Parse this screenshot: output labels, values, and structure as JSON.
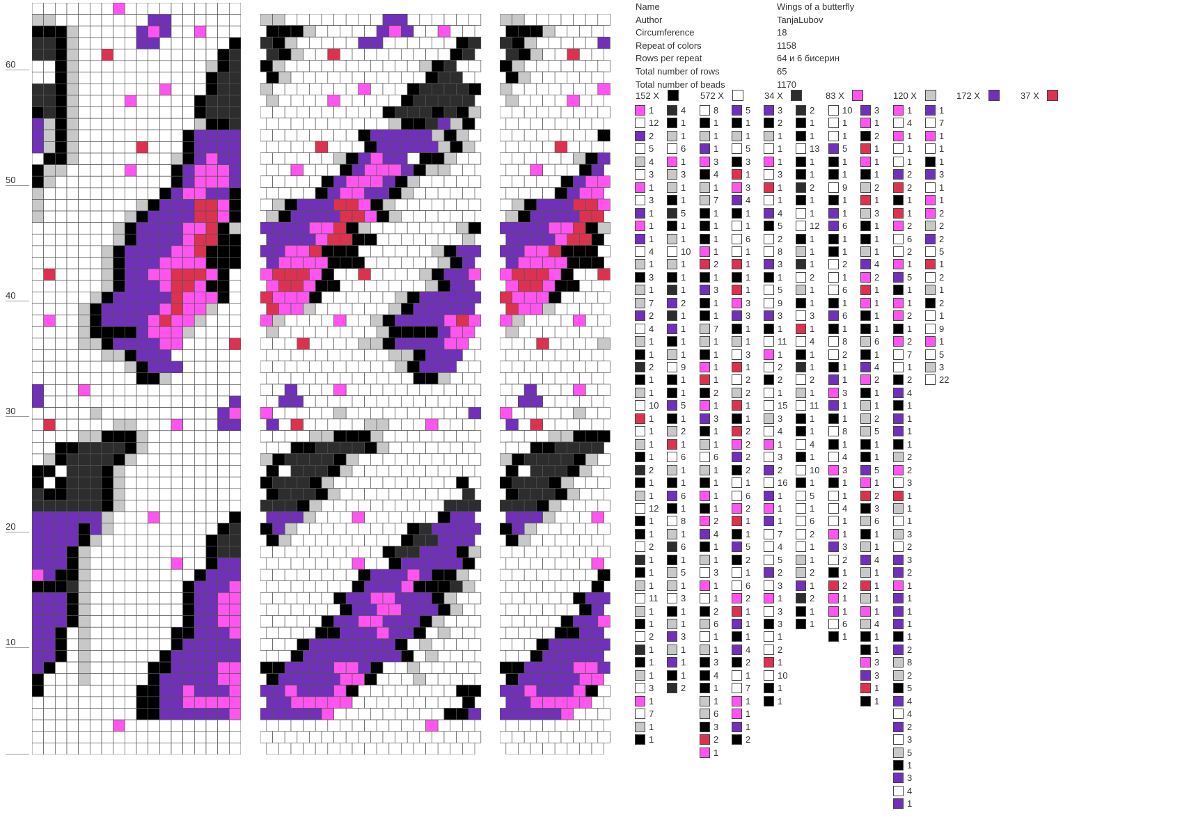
{
  "palette": {
    "W": "#ffffff",
    "K": "#000000",
    "G": "#c8c8c8",
    "D": "#2d2d2d",
    "P": "#7030b8",
    "M": "#ff55ee",
    "R": "#dc3250"
  },
  "row_axis": {
    "labels": [
      "10",
      "20",
      "30",
      "40",
      "50",
      "60"
    ]
  },
  "pattern": {
    "rows": 65,
    "columns": 18,
    "grid": [
      "WWWWWWWMWWWWWWWWWW",
      "GGWWWWWWWWPPWWWWWW",
      "KKKGWWWWWPMPWWMWWW",
      "DDKGWWWWWPPWWWWWWK",
      "DDKGWWRWWWWWWWWWKD",
      "WWKGWWWWWWWWWWWGKD",
      "WWKGWWWWWWWWWWWKDD",
      "DDKGWWWWWWWMWWWKDD",
      "DDKGWWWWMWWWWWKDDD",
      "KDKGWWWWWWWWWWKDDD",
      "PGKGWWWWWWWWWWGKKD",
      "PGKGWWWWWWWWWKPPPP",
      "PGKGWWWWWRWWWKPPPP",
      "WKKGWWWWWWWWGKPMPP",
      "KGGWWWWWMWWWKPMMMP",
      "KGWWWWWWWWWWKPMMMP",
      "GWWWWWWWWWWKPMMPPK",
      "GWWWWWWWWGKPPPRRMK",
      "GWWWWWWWGKPPPPRRMK",
      "WWWWWWWGKPPPPMMRKG",
      "WWWWWWWGKPPPPMRRKK",
      "WWWWWWGKPPPPMMRKKK",
      "WWWWWWGKPPPMMMMKKK",
      "WRWWWWGKPPMMRRRMKW",
      "WWWWWWGKPPPMRRMKKW",
      "WWWWWGKPPPPPRMMMKW",
      "WWWWGKPPPPPMRMMGWW",
      "WMWWGKPPPPMRMMGWWW",
      "WWWWGKKKKPMMMGWWWW",
      "WWWWGGKPPPPMMWWWWR",
      "WWWWWWGGKPPPWWWWWW",
      "WWWWWWWWGKPPPWWWWW",
      "WWWWWWWWWKKGWWWWWW",
      "PWWWMWWWWWWWWWWWWW",
      "PWWWWWWWWWWWWWWWWP",
      "WWWWWGWWWWWWWWWWPM",
      "WRWWWWWGGWWWMWWWPP",
      "WWWWGGKKKGWWWWWWWW",
      "WWKKDDDDKGWWWWWWWW",
      "WGKDDDDKGWWWWWWWWW",
      "KKWDDDKGWWWWWWWWWW",
      "KWKDDDKGWWWWWWWWWW",
      "DKKDDDKGWWWWWWWWWW",
      "DDDDDDKGWWWWWWWWWW",
      "PPPPPPGWWWMWWWWWWK",
      "PPPPKPGWWWWWWWWWKD",
      "PPPPKGWWWWWWWWWKDD",
      "PPPKGWWWWWWWWWWKDD",
      "PPPKGWWWWWWWMWWKPP",
      "MPKKGWWWWWWWWWKPPP",
      "KKKDGWWWWWWWWKPPPM",
      "PPPKGWWWWWWWWKPPMM",
      "PPPKGWWWWWWWWKPPMM",
      "PPPKGWWWWWWWWKPPMM",
      "PPKWGWWWWWWWKKPPPM",
      "PPKWGWWWWWWWKPPPPP",
      "PPKWGWWWWWWKPPPPPP",
      "PKWWGWWWWWKKPPPPMM",
      "KWWWGWWWWWKPPPPPMM",
      "KWWWWWWWWKKPPMPPPM",
      "WWWWWWWWWKKPPMMMMM",
      "WWWWWWWWWKKPPPPPPM",
      "WWWWWWWMWWWWWWWWWW",
      "WWWWWWWWWWWWWWWWWW",
      "WWWWWWWWWWWWWWWWWW"
    ]
  },
  "info": {
    "rows": [
      {
        "label": "Name",
        "value": "Wings of a butterfly"
      },
      {
        "label": "Author",
        "value": "TanjaLubov"
      },
      {
        "label": "Circumference",
        "value": "18"
      },
      {
        "label": "Repeat of colors",
        "value": "1158"
      },
      {
        "label": "Rows per repeat",
        "value": "64 и 6 бисерин"
      },
      {
        "label": "Total number of rows",
        "value": "65"
      },
      {
        "label": "Total number of beads",
        "value": "1170"
      }
    ]
  },
  "color_totals": [
    {
      "text": "152 X",
      "color": "K"
    },
    {
      "text": "572 X",
      "color": "W"
    },
    {
      "text": "34 X",
      "color": "D"
    },
    {
      "text": "83 X",
      "color": "M"
    },
    {
      "text": "120 X",
      "color": "G"
    },
    {
      "text": "172 X",
      "color": "P"
    },
    {
      "text": "37 X",
      "color": "R"
    }
  ],
  "bead_sequence": {
    "columns": [
      [
        "M1",
        "W12",
        "P2",
        "W5",
        "G4",
        "W3",
        "M1",
        "W3",
        "P1",
        "M1",
        "P1",
        "W4",
        "G1",
        "K3",
        "G1",
        "G7",
        "P2",
        "W4",
        "G1",
        "K1",
        "D2",
        "K1",
        "G1",
        "W10",
        "R1",
        "W1",
        "G1",
        "K1",
        "D2",
        "K1",
        "G1",
        "W12",
        "K1",
        "K1",
        "W2",
        "D1",
        "K1",
        "G1",
        "W11",
        "G1",
        "K1",
        "W2",
        "D1",
        "K1",
        "G1",
        "W3",
        "M1",
        "W7",
        "G1",
        "K1"
      ],
      [
        "D4",
        "K1",
        "G1",
        "W6",
        "M1",
        "G3",
        "G1",
        "K1",
        "D5",
        "K1",
        "G1",
        "W10",
        "G1",
        "K1",
        "D1",
        "P2",
        "D1",
        "P1",
        "K1",
        "G1",
        "W9",
        "K1",
        "K1",
        "P5",
        "K1",
        "G2",
        "R1",
        "W6",
        "G1",
        "K1",
        "P6",
        "K1",
        "W8",
        "G1",
        "D6",
        "K1",
        "G5",
        "G1",
        "W3",
        "K1",
        "G1",
        "P3",
        "G1",
        "P1",
        "K1",
        "D2"
      ],
      [
        "W8",
        "K1",
        "G1",
        "P1",
        "M3",
        "K4",
        "G1",
        "G7",
        "K1",
        "K1",
        "K1",
        "M1",
        "R2",
        "K1",
        "P3",
        "K1",
        "K1",
        "G7",
        "G1",
        "K1",
        "M1",
        "R1",
        "K2",
        "M1",
        "P3",
        "K1",
        "G1",
        "W6",
        "G1",
        "K1",
        "M1",
        "K1",
        "M2",
        "P4",
        "K1",
        "G1",
        "W3",
        "M1",
        "W1",
        "K2",
        "G6",
        "W1",
        "G1",
        "K3",
        "K4",
        "K1",
        "G1",
        "G6",
        "K3",
        "R2",
        "M1"
      ],
      [
        "P5",
        "K1",
        "G1",
        "W5",
        "K3",
        "R1",
        "M3",
        "P4",
        "K1",
        "W1",
        "W6",
        "W1",
        "R1",
        "K1",
        "R1",
        "M3",
        "P3",
        "K1",
        "G1",
        "W3",
        "R1",
        "W2",
        "G2",
        "R1",
        "K1",
        "R2",
        "M2",
        "P2",
        "K2",
        "W1",
        "W6",
        "M2",
        "R1",
        "K1",
        "P5",
        "K2",
        "W1",
        "W6",
        "M2",
        "R1",
        "P1",
        "K1",
        "P4",
        "K2",
        "W1",
        "W7",
        "M1",
        "M1",
        "P1",
        "K2"
      ],
      [
        "P3",
        "K2",
        "G1",
        "W1",
        "M1",
        "W3",
        "R1",
        "W1",
        "P4",
        "K5",
        "W2",
        "W8",
        "P3",
        "K1",
        "W5",
        "W9",
        "P3",
        "K1",
        "W11",
        "M1",
        "W2",
        "K2",
        "W1",
        "W15",
        "G3",
        "W4",
        "M1",
        "W3",
        "P2",
        "W16",
        "P1",
        "M1",
        "P1",
        "W7",
        "W4",
        "W5",
        "P2",
        "W3",
        "M1",
        "W3",
        "K3",
        "W1",
        "W2",
        "R1",
        "W10",
        "K1",
        "K1"
      ],
      [
        "D2",
        "K1",
        "K1",
        "W13",
        "K1",
        "K1",
        "D2",
        "K1",
        "W1",
        "W12",
        "K1",
        "G1",
        "D1",
        "W2",
        "G1",
        "K1",
        "W3",
        "R1",
        "W4",
        "K1",
        "D1",
        "W2",
        "G1",
        "W11",
        "K1",
        "K1",
        "W4",
        "K1",
        "W10",
        "K1",
        "W5",
        "W1",
        "W6",
        "W2",
        "W1",
        "G1",
        "G2",
        "P1",
        "D2",
        "K1",
        "K1"
      ],
      [
        "W10",
        "W1",
        "W1",
        "P5",
        "K1",
        "K1",
        "W9",
        "K1",
        "P1",
        "P6",
        "K1",
        "K1",
        "W2",
        "W1",
        "W6",
        "K1",
        "P6",
        "K1",
        "W8",
        "W2",
        "K1",
        "P1",
        "M3",
        "P1",
        "K1",
        "W8",
        "K1",
        "W4",
        "M3",
        "K1",
        "W1",
        "W4",
        "W1",
        "M1",
        "P3",
        "W2",
        "K1",
        "R2",
        "M1",
        "M1",
        "W6",
        "K1"
      ],
      [
        "P3",
        "M1",
        "K2",
        "R1",
        "M1",
        "K1",
        "G2",
        "R1",
        "G3",
        "K1",
        "K1",
        "G1",
        "P4",
        "M2",
        "R1",
        "M1",
        "K1",
        "K1",
        "G6",
        "K1",
        "P4",
        "M2",
        "K1",
        "G1",
        "G2",
        "G5",
        "K1",
        "K1",
        "P5",
        "M1",
        "R2",
        "K3",
        "G6",
        "K1",
        "G1",
        "P4",
        "G1",
        "R1",
        "G1",
        "M1",
        "G4",
        "K1",
        "K1",
        "M3",
        "P3",
        "R1",
        "K1"
      ],
      [
        "M1",
        "W4",
        "M1",
        "W1",
        "W1",
        "P2",
        "R2",
        "K1",
        "R1",
        "M2",
        "W6",
        "W2",
        "M1",
        "P5",
        "K1",
        "M1",
        "M2",
        "K1",
        "M2",
        "W7",
        "W1",
        "K2",
        "P4",
        "K1",
        "P1",
        "P1",
        "K1",
        "G2",
        "M2",
        "W3",
        "R1",
        "G1",
        "W1",
        "G3",
        "W2",
        "P3",
        "P2",
        "M1",
        "P1",
        "P1",
        "P1",
        "K1",
        "P2",
        "G8",
        "G2",
        "K5",
        "P4",
        "W4",
        "P2",
        "W3",
        "G5",
        "K1",
        "P3",
        "W4",
        "P1"
      ],
      [
        "P1",
        "W7",
        "M1",
        "W1",
        "K1",
        "P3",
        "W1",
        "M1",
        "M2",
        "G2",
        "P2",
        "W5",
        "R1",
        "W2",
        "G1",
        "K2",
        "W1",
        "W9",
        "M1",
        "W5",
        "G3",
        "W22"
      ]
    ]
  }
}
